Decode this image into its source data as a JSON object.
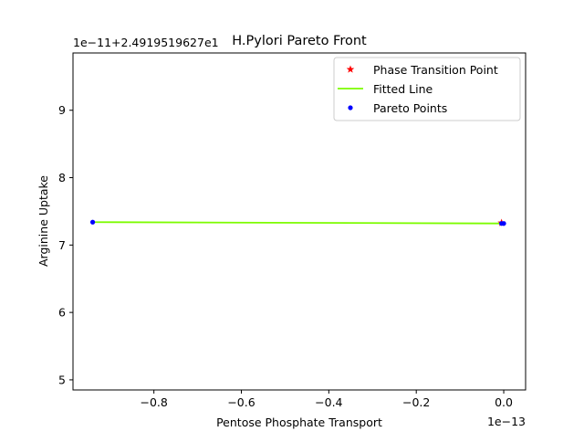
{
  "chart_data": {
    "type": "scatter",
    "title": "H.Pylori Pareto Front",
    "xlabel": "Pentose Phosphate Transport",
    "ylabel": "Arginine Uptake",
    "x_offset_text": "1e−13",
    "y_offset_text": "1e−11+2.4919519627e1",
    "xlim": [
      -0.985,
      0.05
    ],
    "ylim": [
      4.85,
      9.85
    ],
    "x_ticks": [
      -0.8,
      -0.6,
      -0.4,
      -0.2,
      0.0
    ],
    "x_tick_labels": [
      "−0.8",
      "−0.6",
      "−0.4",
      "−0.2",
      "0.0"
    ],
    "y_ticks": [
      5,
      6,
      7,
      8,
      9
    ],
    "y_tick_labels": [
      "5",
      "6",
      "7",
      "8",
      "9"
    ],
    "grid": false,
    "legend_position": "top-right",
    "series": [
      {
        "name": "Phase Transition Point",
        "kind": "marker",
        "marker": "star",
        "color": "#ff0000",
        "points": [
          [
            -0.005,
            7.33
          ]
        ]
      },
      {
        "name": "Fitted Line",
        "kind": "line",
        "color": "#7cfc00",
        "points": [
          [
            -0.94,
            7.34
          ],
          [
            0.0,
            7.32
          ]
        ]
      },
      {
        "name": "Pareto Points",
        "kind": "marker",
        "marker": "dot",
        "color": "#0000ff",
        "points": [
          [
            -0.94,
            7.34
          ],
          [
            -0.005,
            7.32
          ],
          [
            0.0,
            7.32
          ]
        ]
      }
    ]
  }
}
